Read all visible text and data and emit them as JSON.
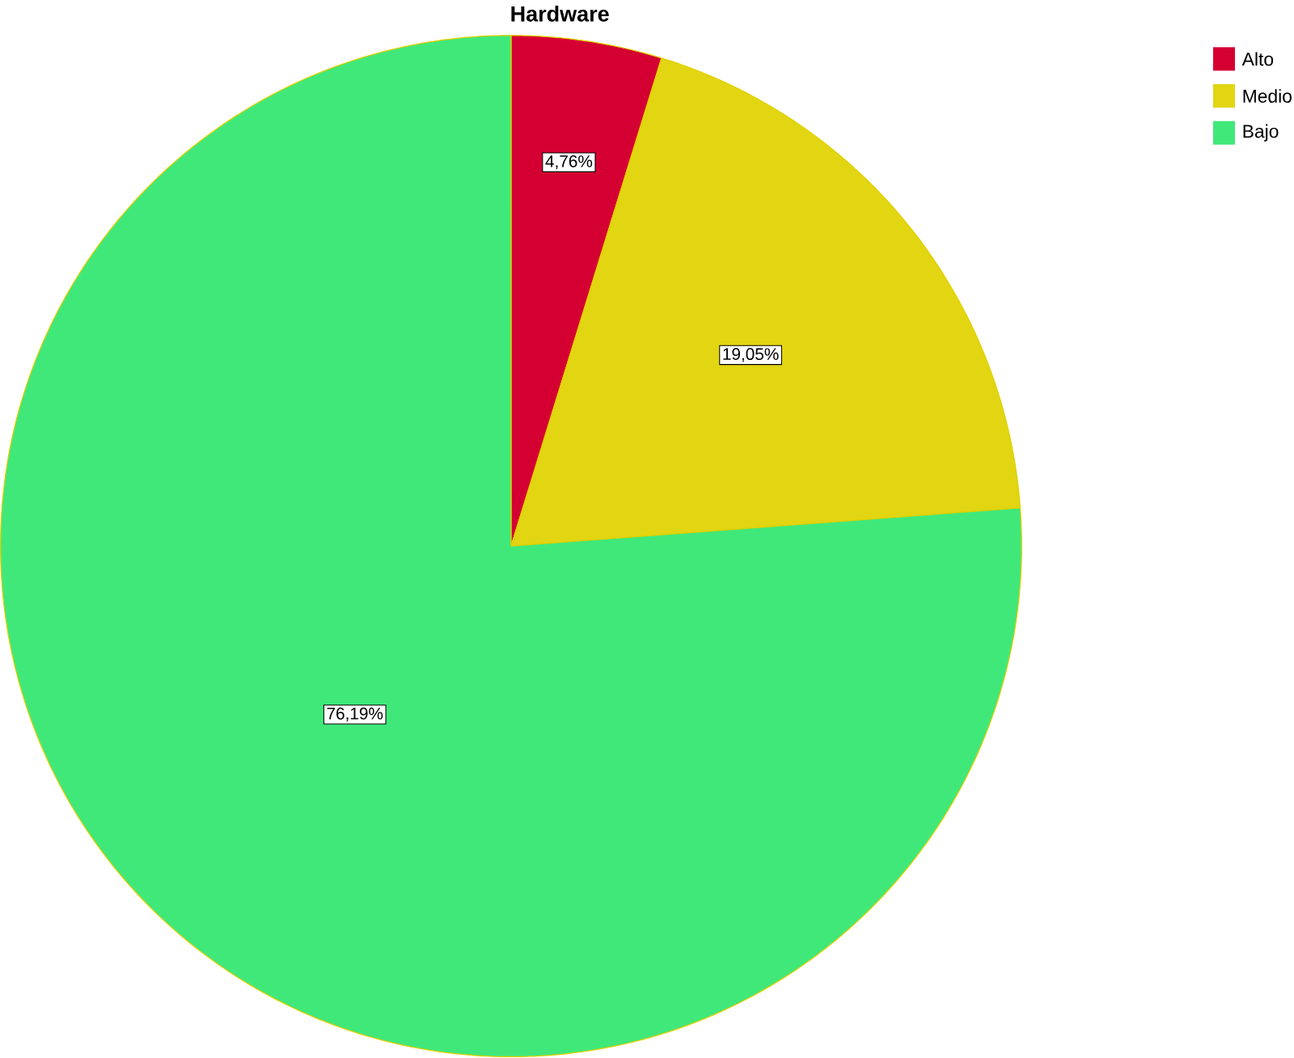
{
  "chart_data": {
    "type": "pie",
    "title": "Hardware",
    "categories": [
      "Alto",
      "Medio",
      "Bajo"
    ],
    "values": [
      4.76,
      19.05,
      76.19
    ],
    "value_labels": [
      "4,76%",
      "19,05%",
      "76,19%"
    ],
    "colors": [
      "#d50032",
      "#e2d512",
      "#40e87a"
    ],
    "legend": "top right"
  }
}
